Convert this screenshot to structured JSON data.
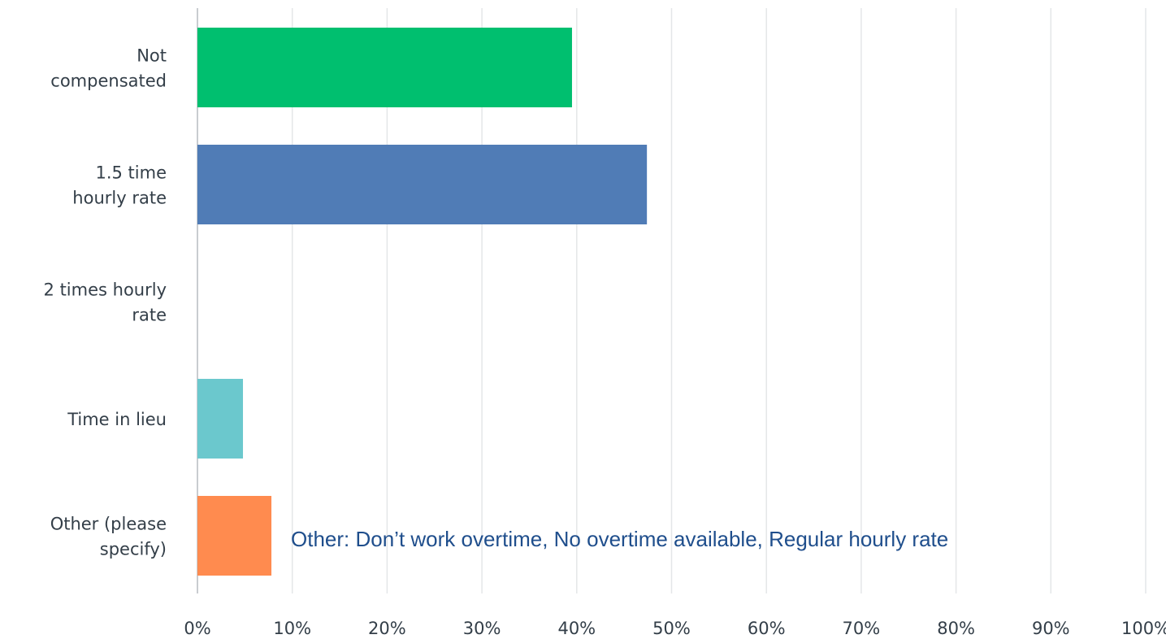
{
  "chart_data": {
    "type": "bar",
    "orientation": "horizontal",
    "categories": [
      [
        "Not",
        "compensated"
      ],
      [
        "1.5 time",
        "hourly rate"
      ],
      [
        "2 times hourly",
        "rate"
      ],
      [
        "Time in lieu"
      ],
      [
        "Other (please",
        "specify)"
      ]
    ],
    "values": [
      39.5,
      47.4,
      0,
      4.8,
      7.8
    ],
    "colors": [
      "#00bf6f",
      "#507cb6",
      "#6bc8cd",
      "#6bc8cd",
      "#ff8b4f"
    ],
    "xlim": [
      0,
      100
    ],
    "x_ticks": [
      "0%",
      "10%",
      "20%",
      "30%",
      "40%",
      "50%",
      "60%",
      "70%",
      "80%",
      "90%",
      "100%"
    ],
    "grid": true,
    "title": "",
    "xlabel": "",
    "ylabel": ""
  },
  "annotation": "Other: Don’t work overtime, No overtime available, Regular hourly rate"
}
